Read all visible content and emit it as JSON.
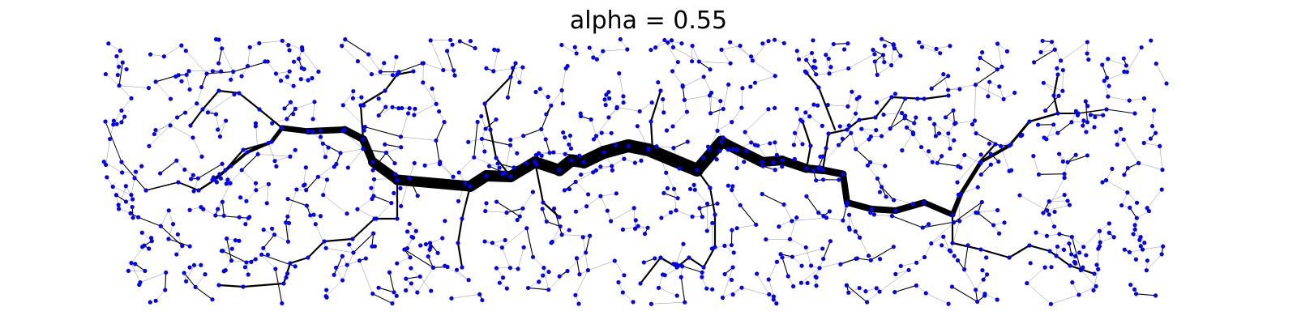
{
  "title": "alpha = 0.55",
  "colors": {
    "node": "#0000ff",
    "edge": "#000000",
    "background": "#ffffff"
  }
}
